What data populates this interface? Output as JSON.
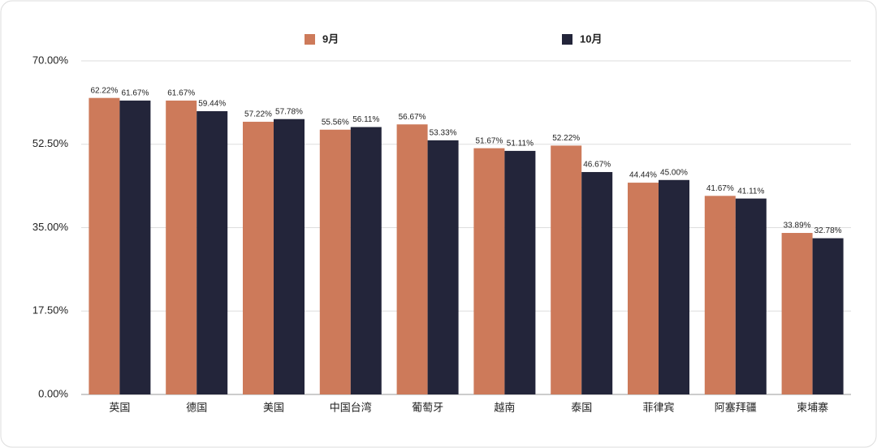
{
  "chart_data": {
    "type": "bar",
    "categories": [
      "英国",
      "德国",
      "美国",
      "中国台湾",
      "葡萄牙",
      "越南",
      "泰国",
      "菲律宾",
      "阿塞拜疆",
      "柬埔寨"
    ],
    "series": [
      {
        "name": "9月",
        "color": "#cd7a5a",
        "values": [
          62.22,
          61.67,
          57.22,
          55.56,
          56.67,
          51.67,
          52.22,
          44.44,
          41.67,
          33.89
        ],
        "value_labels": [
          "62.22%",
          "61.67%",
          "57.22%",
          "55.56%",
          "56.67%",
          "51.67%",
          "52.22%",
          "44.44%",
          "41.67%",
          "33.89%"
        ]
      },
      {
        "name": "10月",
        "color": "#23253a",
        "values": [
          61.67,
          59.44,
          57.78,
          56.11,
          53.33,
          51.11,
          46.67,
          45.0,
          41.11,
          32.78
        ],
        "value_labels": [
          "61.67%",
          "59.44%",
          "57.78%",
          "56.11%",
          "53.33%",
          "51.11%",
          "46.67%",
          "45.00%",
          "41.11%",
          "32.78%"
        ]
      }
    ],
    "ylim": [
      0,
      70
    ],
    "yticks": [
      {
        "value": 0,
        "label": "0.00%"
      },
      {
        "value": 17.5,
        "label": "17.50%"
      },
      {
        "value": 35,
        "label": "35.00%"
      },
      {
        "value": 52.5,
        "label": "52.50%"
      },
      {
        "value": 70,
        "label": "70.00%"
      }
    ],
    "grid": true,
    "legend": "top"
  }
}
